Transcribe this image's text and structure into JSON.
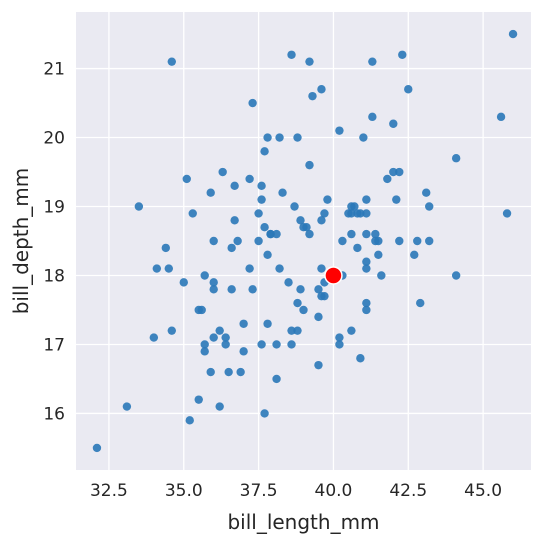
{
  "chart_data": {
    "type": "scatter",
    "title": "",
    "xlabel": "bill_length_mm",
    "ylabel": "bill_depth_mm",
    "xlim": [
      31.4,
      46.6
    ],
    "ylim": [
      15.18,
      21.82
    ],
    "xticks": [
      32.5,
      35.0,
      37.5,
      40.0,
      42.5,
      45.0
    ],
    "xtick_labels": [
      "32.5",
      "35.0",
      "37.5",
      "40.0",
      "42.5",
      "45.0"
    ],
    "yticks": [
      16,
      17,
      18,
      19,
      20,
      21
    ],
    "ytick_labels": [
      "16",
      "17",
      "18",
      "19",
      "20",
      "21"
    ],
    "grid": true,
    "colors": {
      "background": "#eaeaf2",
      "grid": "#ffffff",
      "points": "#2a78b8",
      "highlight": "#ff0000",
      "highlight_edge": "#ffffff"
    },
    "series": [
      {
        "points": [
          [
            32.1,
            15.5
          ],
          [
            33.1,
            16.1
          ],
          [
            33.5,
            19.0
          ],
          [
            34.0,
            17.1
          ],
          [
            34.1,
            18.1
          ],
          [
            34.4,
            18.4
          ],
          [
            34.5,
            18.1
          ],
          [
            34.6,
            21.1
          ],
          [
            34.6,
            17.2
          ],
          [
            35.0,
            17.9
          ],
          [
            35.1,
            19.4
          ],
          [
            35.2,
            15.9
          ],
          [
            35.3,
            18.9
          ],
          [
            35.5,
            16.2
          ],
          [
            35.5,
            17.5
          ],
          [
            35.6,
            17.5
          ],
          [
            35.7,
            16.9
          ],
          [
            35.7,
            17.0
          ],
          [
            35.7,
            18.0
          ],
          [
            35.9,
            19.2
          ],
          [
            35.9,
            16.6
          ],
          [
            36.0,
            17.8
          ],
          [
            36.0,
            17.9
          ],
          [
            36.0,
            18.5
          ],
          [
            36.0,
            17.1
          ],
          [
            36.2,
            16.1
          ],
          [
            36.2,
            17.2
          ],
          [
            36.3,
            19.5
          ],
          [
            36.4,
            17.1
          ],
          [
            36.4,
            17.0
          ],
          [
            36.5,
            16.6
          ],
          [
            36.6,
            17.8
          ],
          [
            36.6,
            18.4
          ],
          [
            36.7,
            19.3
          ],
          [
            36.7,
            18.8
          ],
          [
            36.8,
            18.5
          ],
          [
            36.9,
            16.6
          ],
          [
            37.0,
            16.9
          ],
          [
            37.0,
            17.3
          ],
          [
            37.2,
            18.1
          ],
          [
            37.2,
            19.4
          ],
          [
            37.3,
            20.5
          ],
          [
            37.3,
            17.8
          ],
          [
            37.5,
            18.9
          ],
          [
            37.5,
            18.5
          ],
          [
            37.6,
            19.1
          ],
          [
            37.6,
            19.3
          ],
          [
            37.6,
            17.0
          ],
          [
            37.7,
            18.7
          ],
          [
            37.7,
            19.8
          ],
          [
            37.7,
            16.0
          ],
          [
            37.8,
            18.3
          ],
          [
            37.8,
            17.3
          ],
          [
            37.8,
            20.0
          ],
          [
            37.9,
            18.6
          ],
          [
            37.9,
            18.6
          ],
          [
            38.1,
            18.6
          ],
          [
            38.1,
            17.0
          ],
          [
            38.1,
            16.5
          ],
          [
            38.2,
            20.0
          ],
          [
            38.2,
            18.1
          ],
          [
            38.3,
            19.2
          ],
          [
            38.5,
            17.9
          ],
          [
            38.6,
            21.2
          ],
          [
            38.6,
            17.2
          ],
          [
            38.6,
            17.0
          ],
          [
            38.7,
            19.0
          ],
          [
            38.8,
            17.2
          ],
          [
            38.8,
            20.0
          ],
          [
            38.8,
            17.6
          ],
          [
            38.9,
            18.8
          ],
          [
            38.9,
            17.8
          ],
          [
            39.0,
            18.7
          ],
          [
            39.0,
            17.5
          ],
          [
            39.1,
            18.7
          ],
          [
            39.2,
            19.6
          ],
          [
            39.2,
            21.1
          ],
          [
            39.2,
            18.6
          ],
          [
            39.3,
            20.6
          ],
          [
            39.5,
            16.7
          ],
          [
            39.5,
            17.4
          ],
          [
            39.5,
            17.8
          ],
          [
            39.6,
            17.7
          ],
          [
            39.6,
            20.7
          ],
          [
            39.6,
            18.8
          ],
          [
            39.6,
            18.1
          ],
          [
            39.7,
            18.9
          ],
          [
            39.7,
            17.7
          ],
          [
            39.7,
            17.9
          ],
          [
            39.8,
            19.1
          ],
          [
            40.2,
            17.0
          ],
          [
            40.2,
            17.1
          ],
          [
            40.2,
            20.1
          ],
          [
            40.3,
            18.0
          ],
          [
            40.3,
            18.5
          ],
          [
            40.5,
            18.9
          ],
          [
            40.6,
            17.2
          ],
          [
            40.6,
            18.6
          ],
          [
            40.6,
            18.9
          ],
          [
            40.6,
            19.0
          ],
          [
            40.7,
            19.0
          ],
          [
            40.8,
            18.4
          ],
          [
            40.8,
            18.9
          ],
          [
            40.9,
            18.9
          ],
          [
            40.9,
            16.8
          ],
          [
            41.0,
            20.0
          ],
          [
            41.1,
            17.5
          ],
          [
            41.1,
            17.6
          ],
          [
            41.1,
            18.2
          ],
          [
            41.1,
            18.6
          ],
          [
            41.1,
            18.9
          ],
          [
            41.1,
            19.1
          ],
          [
            41.1,
            18.1
          ],
          [
            41.3,
            21.1
          ],
          [
            41.3,
            20.3
          ],
          [
            41.4,
            18.6
          ],
          [
            41.4,
            18.5
          ],
          [
            41.5,
            18.3
          ],
          [
            41.5,
            18.5
          ],
          [
            41.6,
            18.0
          ],
          [
            41.8,
            19.4
          ],
          [
            42.0,
            20.2
          ],
          [
            42.0,
            19.5
          ],
          [
            42.1,
            19.1
          ],
          [
            42.2,
            18.5
          ],
          [
            42.2,
            19.5
          ],
          [
            42.3,
            21.2
          ],
          [
            42.5,
            20.7
          ],
          [
            42.7,
            18.3
          ],
          [
            42.8,
            18.5
          ],
          [
            42.9,
            17.6
          ],
          [
            43.1,
            19.2
          ],
          [
            43.2,
            18.5
          ],
          [
            43.2,
            19.0
          ],
          [
            44.1,
            19.7
          ],
          [
            44.1,
            18.0
          ],
          [
            45.6,
            20.3
          ],
          [
            45.8,
            18.9
          ],
          [
            46.0,
            21.5
          ]
        ]
      }
    ],
    "highlight_point": [
      40.0,
      18.0
    ]
  }
}
